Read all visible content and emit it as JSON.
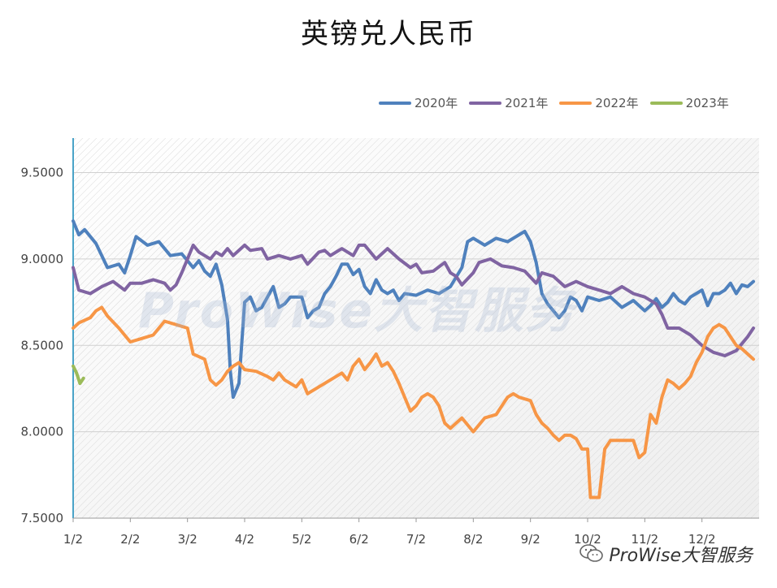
{
  "watermark": "ProWise大智服务",
  "footer": {
    "brand": "ProWise大智服务"
  },
  "chart_data": {
    "type": "line",
    "title": "英镑兑人民币",
    "xlabel": "",
    "ylabel": "",
    "ylim": [
      7.5,
      9.7
    ],
    "yticks": [
      "7.5000",
      "8.0000",
      "8.5000",
      "9.0000",
      "9.5000"
    ],
    "ytick_values": [
      7.5,
      8.0,
      8.5,
      9.0,
      9.5
    ],
    "xticks": [
      "1/2",
      "2/2",
      "3/2",
      "4/2",
      "5/2",
      "6/2",
      "7/2",
      "8/2",
      "9/2",
      "10/2",
      "11/2",
      "12/2"
    ],
    "grid": true,
    "legend_position": "top-right",
    "series": [
      {
        "name": "2020年",
        "color": "#4f81bd",
        "points": [
          [
            0,
            9.22
          ],
          [
            0.1,
            9.14
          ],
          [
            0.2,
            9.17
          ],
          [
            0.4,
            9.09
          ],
          [
            0.6,
            8.95
          ],
          [
            0.8,
            8.97
          ],
          [
            0.9,
            8.92
          ],
          [
            1.0,
            9.02
          ],
          [
            1.1,
            9.13
          ],
          [
            1.3,
            9.08
          ],
          [
            1.5,
            9.1
          ],
          [
            1.7,
            9.02
          ],
          [
            1.9,
            9.03
          ],
          [
            2.0,
            8.99
          ],
          [
            2.1,
            8.95
          ],
          [
            2.2,
            8.99
          ],
          [
            2.3,
            8.93
          ],
          [
            2.4,
            8.9
          ],
          [
            2.5,
            8.97
          ],
          [
            2.6,
            8.85
          ],
          [
            2.7,
            8.65
          ],
          [
            2.75,
            8.35
          ],
          [
            2.8,
            8.2
          ],
          [
            2.9,
            8.28
          ],
          [
            3.0,
            8.75
          ],
          [
            3.1,
            8.78
          ],
          [
            3.2,
            8.7
          ],
          [
            3.3,
            8.72
          ],
          [
            3.5,
            8.84
          ],
          [
            3.6,
            8.72
          ],
          [
            3.7,
            8.74
          ],
          [
            3.8,
            8.78
          ],
          [
            4.0,
            8.78
          ],
          [
            4.1,
            8.66
          ],
          [
            4.2,
            8.7
          ],
          [
            4.3,
            8.72
          ],
          [
            4.4,
            8.8
          ],
          [
            4.5,
            8.84
          ],
          [
            4.6,
            8.9
          ],
          [
            4.7,
            8.97
          ],
          [
            4.8,
            8.97
          ],
          [
            4.9,
            8.91
          ],
          [
            5.0,
            8.94
          ],
          [
            5.1,
            8.84
          ],
          [
            5.2,
            8.8
          ],
          [
            5.3,
            8.88
          ],
          [
            5.4,
            8.82
          ],
          [
            5.5,
            8.8
          ],
          [
            5.6,
            8.82
          ],
          [
            5.7,
            8.76
          ],
          [
            5.8,
            8.8
          ],
          [
            6.0,
            8.79
          ],
          [
            6.2,
            8.82
          ],
          [
            6.4,
            8.8
          ],
          [
            6.6,
            8.84
          ],
          [
            6.8,
            8.95
          ],
          [
            6.9,
            9.1
          ],
          [
            7.0,
            9.12
          ],
          [
            7.1,
            9.1
          ],
          [
            7.2,
            9.08
          ],
          [
            7.4,
            9.12
          ],
          [
            7.6,
            9.1
          ],
          [
            7.8,
            9.14
          ],
          [
            7.9,
            9.16
          ],
          [
            8.0,
            9.1
          ],
          [
            8.1,
            8.98
          ],
          [
            8.2,
            8.8
          ],
          [
            8.3,
            8.74
          ],
          [
            8.4,
            8.7
          ],
          [
            8.5,
            8.66
          ],
          [
            8.6,
            8.7
          ],
          [
            8.7,
            8.78
          ],
          [
            8.8,
            8.76
          ],
          [
            8.9,
            8.7
          ],
          [
            9.0,
            8.78
          ],
          [
            9.2,
            8.76
          ],
          [
            9.4,
            8.78
          ],
          [
            9.6,
            8.72
          ],
          [
            9.8,
            8.76
          ],
          [
            10.0,
            8.7
          ],
          [
            10.1,
            8.73
          ],
          [
            10.2,
            8.77
          ],
          [
            10.3,
            8.72
          ],
          [
            10.4,
            8.75
          ],
          [
            10.5,
            8.8
          ],
          [
            10.6,
            8.76
          ],
          [
            10.7,
            8.74
          ],
          [
            10.8,
            8.78
          ],
          [
            10.9,
            8.8
          ],
          [
            11.0,
            8.82
          ],
          [
            11.1,
            8.73
          ],
          [
            11.2,
            8.8
          ],
          [
            11.3,
            8.8
          ],
          [
            11.4,
            8.82
          ],
          [
            11.5,
            8.86
          ],
          [
            11.6,
            8.8
          ],
          [
            11.7,
            8.85
          ],
          [
            11.8,
            8.84
          ],
          [
            11.9,
            8.87
          ]
        ]
      },
      {
        "name": "2021年",
        "color": "#8064a2",
        "points": [
          [
            0,
            8.95
          ],
          [
            0.1,
            8.82
          ],
          [
            0.3,
            8.8
          ],
          [
            0.5,
            8.84
          ],
          [
            0.7,
            8.87
          ],
          [
            0.9,
            8.82
          ],
          [
            1.0,
            8.86
          ],
          [
            1.2,
            8.86
          ],
          [
            1.4,
            8.88
          ],
          [
            1.6,
            8.86
          ],
          [
            1.7,
            8.82
          ],
          [
            1.8,
            8.85
          ],
          [
            1.9,
            8.92
          ],
          [
            2.0,
            9.0
          ],
          [
            2.1,
            9.08
          ],
          [
            2.2,
            9.04
          ],
          [
            2.3,
            9.02
          ],
          [
            2.4,
            9.0
          ],
          [
            2.5,
            9.04
          ],
          [
            2.6,
            9.02
          ],
          [
            2.7,
            9.06
          ],
          [
            2.8,
            9.02
          ],
          [
            3.0,
            9.08
          ],
          [
            3.1,
            9.05
          ],
          [
            3.3,
            9.06
          ],
          [
            3.4,
            9.0
          ],
          [
            3.6,
            9.02
          ],
          [
            3.8,
            9.0
          ],
          [
            4.0,
            9.02
          ],
          [
            4.1,
            8.97
          ],
          [
            4.3,
            9.04
          ],
          [
            4.4,
            9.05
          ],
          [
            4.5,
            9.02
          ],
          [
            4.7,
            9.06
          ],
          [
            4.9,
            9.02
          ],
          [
            5.0,
            9.08
          ],
          [
            5.1,
            9.08
          ],
          [
            5.3,
            9.0
          ],
          [
            5.5,
            9.06
          ],
          [
            5.7,
            9.0
          ],
          [
            5.9,
            8.95
          ],
          [
            6.0,
            8.97
          ],
          [
            6.1,
            8.92
          ],
          [
            6.3,
            8.93
          ],
          [
            6.5,
            8.98
          ],
          [
            6.6,
            8.92
          ],
          [
            6.7,
            8.9
          ],
          [
            6.8,
            8.85
          ],
          [
            7.0,
            8.92
          ],
          [
            7.1,
            8.98
          ],
          [
            7.3,
            9.0
          ],
          [
            7.5,
            8.96
          ],
          [
            7.7,
            8.95
          ],
          [
            7.9,
            8.93
          ],
          [
            8.1,
            8.86
          ],
          [
            8.2,
            8.92
          ],
          [
            8.4,
            8.9
          ],
          [
            8.6,
            8.84
          ],
          [
            8.8,
            8.87
          ],
          [
            9.0,
            8.84
          ],
          [
            9.2,
            8.82
          ],
          [
            9.4,
            8.8
          ],
          [
            9.6,
            8.84
          ],
          [
            9.8,
            8.8
          ],
          [
            10.0,
            8.78
          ],
          [
            10.2,
            8.74
          ],
          [
            10.3,
            8.68
          ],
          [
            10.4,
            8.6
          ],
          [
            10.6,
            8.6
          ],
          [
            10.8,
            8.56
          ],
          [
            11.0,
            8.5
          ],
          [
            11.2,
            8.46
          ],
          [
            11.4,
            8.44
          ],
          [
            11.6,
            8.47
          ],
          [
            11.8,
            8.55
          ],
          [
            11.9,
            8.6
          ]
        ]
      },
      {
        "name": "2022年",
        "color": "#f79646",
        "points": [
          [
            0,
            8.6
          ],
          [
            0.1,
            8.63
          ],
          [
            0.3,
            8.66
          ],
          [
            0.4,
            8.7
          ],
          [
            0.5,
            8.72
          ],
          [
            0.6,
            8.67
          ],
          [
            0.8,
            8.6
          ],
          [
            1.0,
            8.52
          ],
          [
            1.2,
            8.54
          ],
          [
            1.4,
            8.56
          ],
          [
            1.5,
            8.6
          ],
          [
            1.6,
            8.64
          ],
          [
            1.8,
            8.62
          ],
          [
            2.0,
            8.6
          ],
          [
            2.1,
            8.45
          ],
          [
            2.3,
            8.42
          ],
          [
            2.4,
            8.3
          ],
          [
            2.5,
            8.27
          ],
          [
            2.6,
            8.3
          ],
          [
            2.7,
            8.35
          ],
          [
            2.8,
            8.38
          ],
          [
            2.9,
            8.4
          ],
          [
            3.0,
            8.36
          ],
          [
            3.2,
            8.35
          ],
          [
            3.4,
            8.32
          ],
          [
            3.5,
            8.3
          ],
          [
            3.6,
            8.34
          ],
          [
            3.7,
            8.3
          ],
          [
            3.8,
            8.28
          ],
          [
            3.9,
            8.26
          ],
          [
            4.0,
            8.3
          ],
          [
            4.1,
            8.22
          ],
          [
            4.3,
            8.26
          ],
          [
            4.5,
            8.3
          ],
          [
            4.7,
            8.34
          ],
          [
            4.8,
            8.3
          ],
          [
            4.9,
            8.38
          ],
          [
            5.0,
            8.42
          ],
          [
            5.1,
            8.36
          ],
          [
            5.2,
            8.4
          ],
          [
            5.3,
            8.45
          ],
          [
            5.4,
            8.38
          ],
          [
            5.5,
            8.4
          ],
          [
            5.6,
            8.35
          ],
          [
            5.7,
            8.28
          ],
          [
            5.8,
            8.2
          ],
          [
            5.9,
            8.12
          ],
          [
            6.0,
            8.15
          ],
          [
            6.1,
            8.2
          ],
          [
            6.2,
            8.22
          ],
          [
            6.3,
            8.2
          ],
          [
            6.4,
            8.15
          ],
          [
            6.5,
            8.05
          ],
          [
            6.6,
            8.02
          ],
          [
            6.7,
            8.05
          ],
          [
            6.8,
            8.08
          ],
          [
            7.0,
            8.0
          ],
          [
            7.2,
            8.08
          ],
          [
            7.4,
            8.1
          ],
          [
            7.5,
            8.15
          ],
          [
            7.6,
            8.2
          ],
          [
            7.7,
            8.22
          ],
          [
            7.8,
            8.2
          ],
          [
            8.0,
            8.18
          ],
          [
            8.1,
            8.1
          ],
          [
            8.2,
            8.05
          ],
          [
            8.3,
            8.02
          ],
          [
            8.4,
            7.98
          ],
          [
            8.5,
            7.95
          ],
          [
            8.6,
            7.98
          ],
          [
            8.7,
            7.98
          ],
          [
            8.8,
            7.96
          ],
          [
            8.9,
            7.9
          ],
          [
            9.0,
            7.9
          ],
          [
            9.05,
            7.62
          ],
          [
            9.2,
            7.62
          ],
          [
            9.3,
            7.9
          ],
          [
            9.4,
            7.95
          ],
          [
            9.6,
            7.95
          ],
          [
            9.8,
            7.95
          ],
          [
            9.9,
            7.85
          ],
          [
            10.0,
            7.88
          ],
          [
            10.1,
            8.1
          ],
          [
            10.2,
            8.05
          ],
          [
            10.3,
            8.2
          ],
          [
            10.4,
            8.3
          ],
          [
            10.5,
            8.28
          ],
          [
            10.6,
            8.25
          ],
          [
            10.7,
            8.28
          ],
          [
            10.8,
            8.32
          ],
          [
            10.9,
            8.4
          ],
          [
            11.0,
            8.46
          ],
          [
            11.1,
            8.55
          ],
          [
            11.2,
            8.6
          ],
          [
            11.3,
            8.62
          ],
          [
            11.4,
            8.6
          ],
          [
            11.5,
            8.55
          ],
          [
            11.6,
            8.5
          ],
          [
            11.7,
            8.48
          ],
          [
            11.8,
            8.45
          ],
          [
            11.9,
            8.42
          ]
        ]
      },
      {
        "name": "2023年",
        "color": "#9bbb59",
        "points": [
          [
            0,
            8.38
          ],
          [
            0.06,
            8.34
          ],
          [
            0.12,
            8.28
          ],
          [
            0.18,
            8.31
          ]
        ]
      }
    ]
  }
}
